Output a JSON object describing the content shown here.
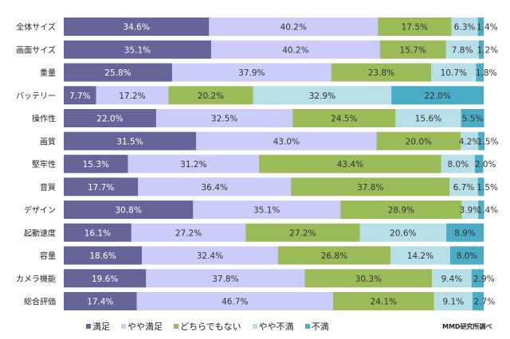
{
  "chart_data": {
    "type": "bar",
    "orientation": "horizontal",
    "stacked": true,
    "percent_stacked": true,
    "categories": [
      "全体サイズ",
      "画面サイズ",
      "重量",
      "バッテリー",
      "操作性",
      "画質",
      "堅牢性",
      "音質",
      "デザイン",
      "起動速度",
      "容量",
      "カメラ機能",
      "総合評価"
    ],
    "series": [
      {
        "name": "満足",
        "color": "#67649a",
        "values": [
          34.6,
          35.1,
          25.8,
          7.7,
          22.0,
          31.5,
          15.3,
          17.7,
          30.8,
          16.1,
          18.6,
          19.6,
          17.4
        ]
      },
      {
        "name": "やや満足",
        "color": "#ccccf8",
        "values": [
          40.2,
          40.2,
          37.9,
          17.2,
          32.5,
          43.0,
          31.2,
          36.4,
          35.1,
          27.2,
          32.4,
          37.8,
          46.7
        ]
      },
      {
        "name": "どちらでもない",
        "color": "#9bbb59",
        "values": [
          17.5,
          15.7,
          23.8,
          20.2,
          24.5,
          20.0,
          43.4,
          37.8,
          28.9,
          27.2,
          26.8,
          30.3,
          24.1
        ]
      },
      {
        "name": "やや不満",
        "color": "#b7dfe8",
        "values": [
          6.3,
          7.8,
          10.7,
          32.9,
          15.6,
          4.2,
          8.0,
          6.7,
          3.9,
          20.6,
          14.2,
          9.4,
          9.1
        ]
      },
      {
        "name": "不満",
        "color": "#4bacc6",
        "values": [
          1.4,
          1.2,
          1.8,
          22.0,
          5.5,
          1.5,
          2.0,
          1.5,
          1.4,
          8.9,
          8.0,
          2.9,
          2.7
        ]
      }
    ],
    "xlim": [
      0,
      100
    ],
    "grid": false,
    "legend": "bottom",
    "label_format": "%"
  },
  "source_note": "MMD研究所調べ"
}
